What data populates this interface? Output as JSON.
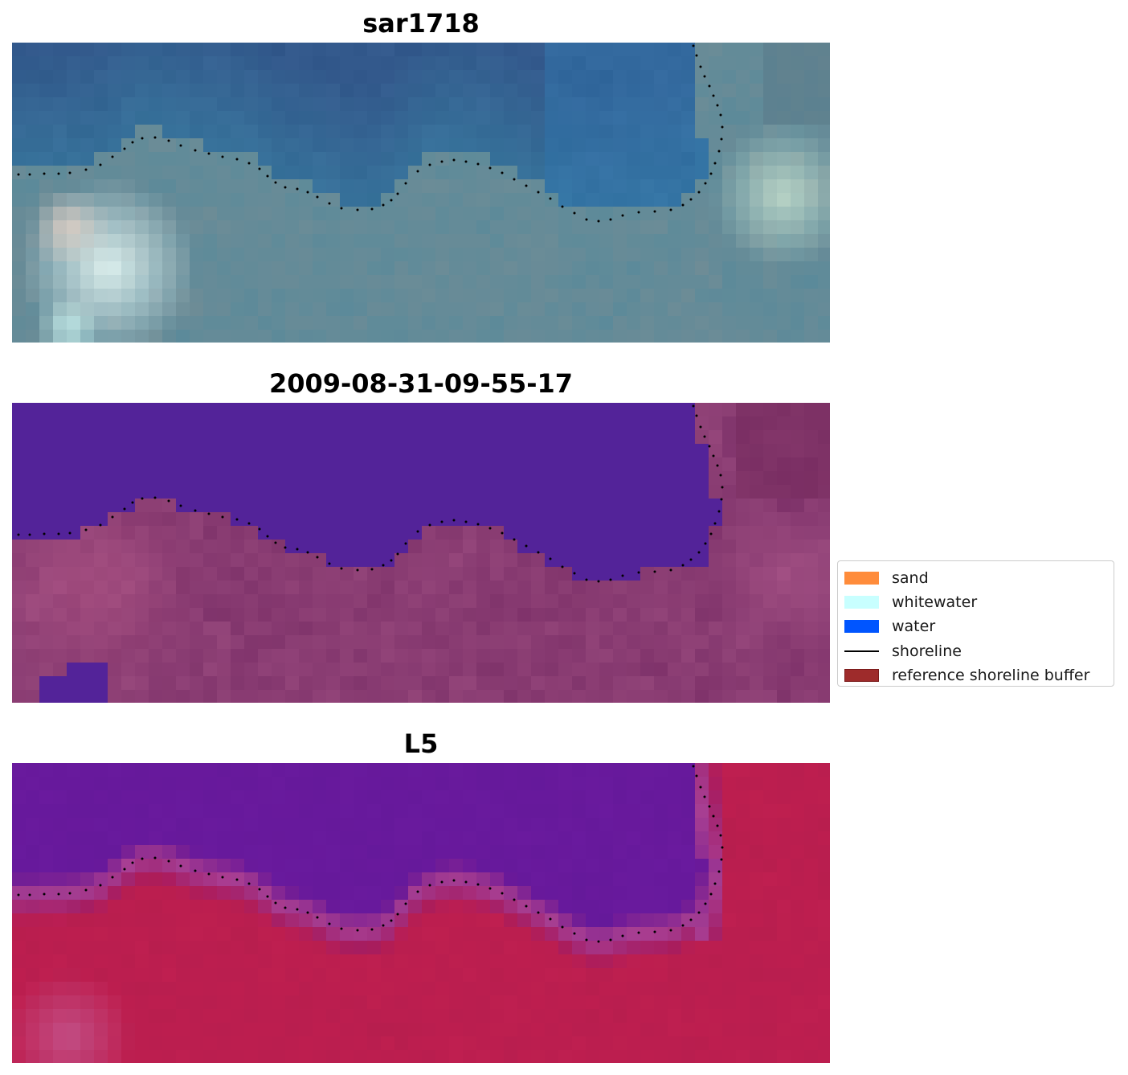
{
  "panels": [
    {
      "title": "sar1718",
      "style": "rgb"
    },
    {
      "title": "2009-08-31-09-55-17",
      "style": "classified"
    },
    {
      "title": "L5",
      "style": "index"
    }
  ],
  "legend": {
    "items": [
      {
        "label": "sand",
        "color": "#ff8c3b",
        "kind": "patch"
      },
      {
        "label": "whitewater",
        "color": "#c8ffff",
        "kind": "patch"
      },
      {
        "label": "water",
        "color": "#0055ff",
        "kind": "patch"
      },
      {
        "label": "shoreline",
        "color": "#000000",
        "kind": "line"
      },
      {
        "label": "reference shoreline buffer",
        "color": "#9e2b2b",
        "kind": "patch"
      }
    ]
  },
  "colors": {
    "rgb_deep_water": "#2e5487",
    "rgb_shallow": "#5a8a9a",
    "rgb_bright": "#eafaf6",
    "classified_water": "#532399",
    "classified_land": "#7d3169",
    "index_water": "#6a1a9e",
    "index_land": "#c01f50",
    "shoreline_dots": "#000000"
  }
}
